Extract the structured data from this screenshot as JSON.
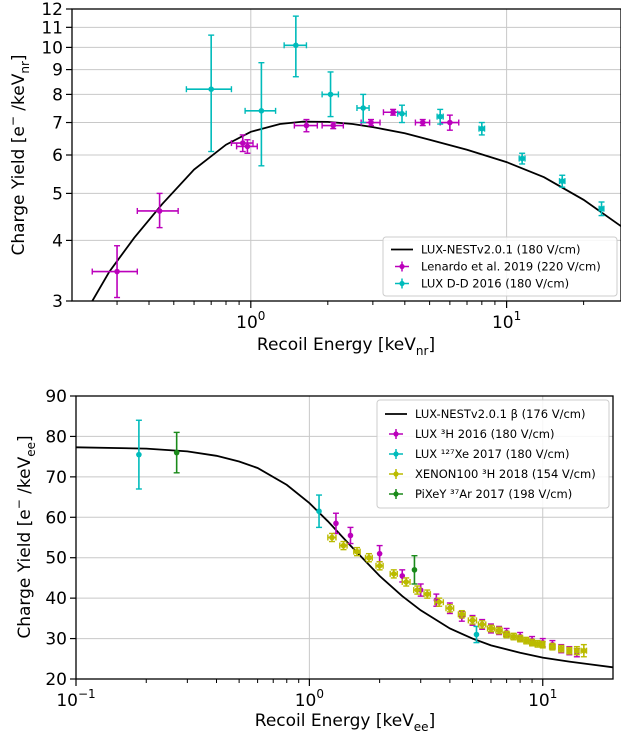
{
  "chart_data": [
    {
      "type": "scatter",
      "xscale": "log",
      "yscale": "log",
      "xlim": [
        0.2,
        28
      ],
      "ylim": [
        3,
        12
      ],
      "xlabel": "Recoil Energy [keV",
      "xlabel_sub": "nr",
      "xlabel_end": "]",
      "ylabel": "Charge Yield [e",
      "ylabel_sup": "−",
      "ylabel_mid": " /keV",
      "ylabel_sub": "nr",
      "ylabel_end": "]",
      "xticks": [
        {
          "v": 1,
          "base": "10",
          "exp": "0"
        },
        {
          "v": 10,
          "base": "10",
          "exp": "1"
        }
      ],
      "yticks": [
        3,
        4,
        5,
        6,
        7,
        8,
        9,
        10,
        11,
        12
      ],
      "grid": true,
      "legend_position": "lower-right",
      "series": [
        {
          "name": "LUX-NESTv2.0.1 (180 V/cm)",
          "kind": "line",
          "color": "#000000",
          "x": [
            0.24,
            0.28,
            0.35,
            0.45,
            0.6,
            0.8,
            1.0,
            1.3,
            1.6,
            2.0,
            2.5,
            3.0,
            4.0,
            5.0,
            7.0,
            10.0,
            14.0,
            20.0,
            28.0
          ],
          "y": [
            3.0,
            3.45,
            4.05,
            4.75,
            5.6,
            6.3,
            6.7,
            6.95,
            7.03,
            7.02,
            6.95,
            6.85,
            6.65,
            6.45,
            6.15,
            5.8,
            5.4,
            4.85,
            4.28
          ]
        },
        {
          "name": "Lenardo et al. 2019 (220 V/cm)",
          "kind": "points",
          "color": "#bb00bb",
          "points": [
            {
              "x": 0.3,
              "y": 3.45,
              "xlo": 0.24,
              "xhi": 0.36,
              "ylo": 3.05,
              "yhi": 3.9
            },
            {
              "x": 0.44,
              "y": 4.6,
              "xlo": 0.36,
              "xhi": 0.52,
              "ylo": 4.25,
              "yhi": 5.0
            },
            {
              "x": 0.93,
              "y": 6.35,
              "xlo": 0.84,
              "xhi": 1.02,
              "ylo": 6.1,
              "yhi": 6.6
            },
            {
              "x": 0.97,
              "y": 6.25,
              "xlo": 0.88,
              "xhi": 1.06,
              "ylo": 6.05,
              "yhi": 6.45
            },
            {
              "x": 1.65,
              "y": 6.9,
              "xlo": 1.48,
              "xhi": 1.82,
              "ylo": 6.7,
              "yhi": 7.1
            },
            {
              "x": 2.1,
              "y": 6.9,
              "xlo": 1.9,
              "xhi": 2.3,
              "ylo": 6.8,
              "yhi": 7.0
            },
            {
              "x": 2.95,
              "y": 7.0,
              "xlo": 2.7,
              "xhi": 3.2,
              "ylo": 6.9,
              "yhi": 7.1
            },
            {
              "x": 3.6,
              "y": 7.35,
              "xlo": 3.3,
              "xhi": 3.9,
              "ylo": 7.25,
              "yhi": 7.45
            },
            {
              "x": 4.7,
              "y": 7.0,
              "xlo": 4.4,
              "xhi": 5.0,
              "ylo": 6.9,
              "yhi": 7.1
            },
            {
              "x": 6.0,
              "y": 7.0,
              "xlo": 5.5,
              "xhi": 6.5,
              "ylo": 6.75,
              "yhi": 7.25
            }
          ]
        },
        {
          "name": "LUX D-D 2016 (180 V/cm)",
          "kind": "points",
          "color": "#00bbbb",
          "points": [
            {
              "x": 0.7,
              "y": 8.2,
              "xlo": 0.56,
              "xhi": 0.84,
              "ylo": 6.1,
              "yhi": 10.6
            },
            {
              "x": 1.1,
              "y": 7.4,
              "xlo": 0.95,
              "xhi": 1.25,
              "ylo": 5.7,
              "yhi": 9.3
            },
            {
              "x": 1.5,
              "y": 10.1,
              "xlo": 1.35,
              "xhi": 1.65,
              "ylo": 8.7,
              "yhi": 11.6
            },
            {
              "x": 2.05,
              "y": 8.0,
              "xlo": 1.9,
              "xhi": 2.2,
              "ylo": 7.2,
              "yhi": 8.9
            },
            {
              "x": 2.75,
              "y": 7.5,
              "xlo": 2.6,
              "xhi": 2.9,
              "ylo": 7.0,
              "yhi": 8.0
            },
            {
              "x": 3.9,
              "y": 7.3,
              "xlo": 3.75,
              "xhi": 4.05,
              "ylo": 7.0,
              "yhi": 7.6
            },
            {
              "x": 5.5,
              "y": 7.2,
              "xlo": 5.35,
              "xhi": 5.65,
              "ylo": 6.95,
              "yhi": 7.45
            },
            {
              "x": 8.0,
              "y": 6.8,
              "xlo": 7.8,
              "xhi": 8.2,
              "ylo": 6.6,
              "yhi": 7.0
            },
            {
              "x": 11.5,
              "y": 5.9,
              "xlo": 11.2,
              "xhi": 11.8,
              "ylo": 5.75,
              "yhi": 6.05
            },
            {
              "x": 16.5,
              "y": 5.3,
              "xlo": 16.1,
              "xhi": 16.9,
              "ylo": 5.15,
              "yhi": 5.45
            },
            {
              "x": 23.5,
              "y": 4.65,
              "xlo": 23.0,
              "xhi": 24.0,
              "ylo": 4.5,
              "yhi": 4.8
            }
          ]
        }
      ]
    },
    {
      "type": "scatter",
      "xscale": "log",
      "yscale": "linear",
      "xlim": [
        0.1,
        20
      ],
      "ylim": [
        20,
        90
      ],
      "xlabel": "Recoil Energy [keV",
      "xlabel_sub": "ee",
      "xlabel_end": "]",
      "ylabel": "Charge Yield [e",
      "ylabel_sup": "−",
      "ylabel_mid": " /keV",
      "ylabel_sub": "ee",
      "ylabel_end": "]",
      "xticks": [
        {
          "v": 0.1,
          "base": "10",
          "exp": "−1"
        },
        {
          "v": 1,
          "base": "10",
          "exp": "0"
        },
        {
          "v": 10,
          "base": "10",
          "exp": "1"
        }
      ],
      "yticks": [
        20,
        30,
        40,
        50,
        60,
        70,
        80,
        90
      ],
      "grid": true,
      "legend_position": "top-right",
      "series": [
        {
          "name": "LUX-NESTv2.0.1 β (176 V/cm)",
          "kind": "line",
          "color": "#000000",
          "x": [
            0.1,
            0.2,
            0.3,
            0.4,
            0.5,
            0.6,
            0.8,
            1.0,
            1.2,
            1.5,
            2.0,
            2.5,
            3.0,
            4.0,
            5.0,
            6.0,
            8.0,
            10.0,
            13.0,
            16.0,
            20.0
          ],
          "y": [
            77.3,
            77.0,
            76.3,
            75.2,
            73.8,
            72.2,
            68.0,
            63.5,
            59.0,
            53.0,
            45.5,
            40.5,
            37.0,
            32.5,
            30.0,
            28.3,
            26.5,
            25.3,
            24.3,
            23.6,
            22.9
          ]
        },
        {
          "name": "LUX ³H 2016 (180 V/cm)",
          "kind": "points",
          "color": "#bb00bb",
          "points": [
            {
              "x": 1.3,
              "y": 58.5,
              "ylo": 56.0,
              "yhi": 61.0
            },
            {
              "x": 1.5,
              "y": 55.5,
              "ylo": 53.5,
              "yhi": 57.5
            },
            {
              "x": 2.0,
              "y": 51.0,
              "ylo": 49.0,
              "yhi": 53.0
            },
            {
              "x": 2.5,
              "y": 45.5,
              "ylo": 44.0,
              "yhi": 47.0
            },
            {
              "x": 3.0,
              "y": 42.0,
              "ylo": 40.5,
              "yhi": 43.5
            },
            {
              "x": 3.5,
              "y": 39.5,
              "ylo": 38.0,
              "yhi": 41.0
            },
            {
              "x": 4.0,
              "y": 37.5,
              "ylo": 36.2,
              "yhi": 38.8
            },
            {
              "x": 4.5,
              "y": 35.5,
              "ylo": 34.3,
              "yhi": 36.7
            },
            {
              "x": 5.0,
              "y": 34.5,
              "ylo": 33.3,
              "yhi": 35.7
            },
            {
              "x": 5.5,
              "y": 33.5,
              "ylo": 32.3,
              "yhi": 34.7
            },
            {
              "x": 6.0,
              "y": 32.5,
              "ylo": 31.4,
              "yhi": 33.6
            },
            {
              "x": 6.5,
              "y": 32.0,
              "ylo": 31.0,
              "yhi": 33.0
            },
            {
              "x": 7.0,
              "y": 31.5,
              "ylo": 30.5,
              "yhi": 32.5
            },
            {
              "x": 8.0,
              "y": 30.5,
              "ylo": 29.5,
              "yhi": 31.5
            },
            {
              "x": 9.0,
              "y": 29.5,
              "ylo": 28.5,
              "yhi": 30.5
            },
            {
              "x": 10.0,
              "y": 29.0,
              "ylo": 28.0,
              "yhi": 30.0
            },
            {
              "x": 11.0,
              "y": 28.5,
              "ylo": 27.5,
              "yhi": 29.5
            },
            {
              "x": 12.0,
              "y": 27.5,
              "ylo": 26.5,
              "yhi": 28.5
            },
            {
              "x": 13.0,
              "y": 27.0,
              "ylo": 26.0,
              "yhi": 28.0
            },
            {
              "x": 14.0,
              "y": 26.5,
              "ylo": 25.5,
              "yhi": 27.5
            }
          ]
        },
        {
          "name": "LUX ¹²⁷Xe 2017 (180 V/cm)",
          "kind": "points",
          "color": "#00bbbb",
          "points": [
            {
              "x": 0.186,
              "y": 75.5,
              "ylo": 67.0,
              "yhi": 84.0
            },
            {
              "x": 1.1,
              "y": 61.5,
              "ylo": 57.5,
              "yhi": 65.5
            },
            {
              "x": 5.2,
              "y": 31.0,
              "ylo": 29.0,
              "yhi": 33.0
            }
          ]
        },
        {
          "name": "XENON100 ³H 2018 (154 V/cm)",
          "kind": "points",
          "color": "#bbbb00",
          "points": [
            {
              "x": 1.25,
              "y": 55.0,
              "xlo": 1.2,
              "xhi": 1.3,
              "ylo": 54.0,
              "yhi": 56.0
            },
            {
              "x": 1.4,
              "y": 53.0,
              "xlo": 1.35,
              "xhi": 1.45,
              "ylo": 52.0,
              "yhi": 54.0
            },
            {
              "x": 1.6,
              "y": 51.5,
              "xlo": 1.55,
              "xhi": 1.65,
              "ylo": 50.5,
              "yhi": 52.5
            },
            {
              "x": 1.8,
              "y": 50.0,
              "xlo": 1.74,
              "xhi": 1.86,
              "ylo": 49.0,
              "yhi": 51.0
            },
            {
              "x": 2.0,
              "y": 48.0,
              "xlo": 1.93,
              "xhi": 2.07,
              "ylo": 47.0,
              "yhi": 49.0
            },
            {
              "x": 2.3,
              "y": 46.0,
              "xlo": 2.22,
              "xhi": 2.38,
              "ylo": 45.0,
              "yhi": 47.0
            },
            {
              "x": 2.6,
              "y": 44.0,
              "xlo": 2.5,
              "xhi": 2.7,
              "ylo": 43.0,
              "yhi": 45.0
            },
            {
              "x": 2.9,
              "y": 42.0,
              "xlo": 2.8,
              "xhi": 3.0,
              "ylo": 41.0,
              "yhi": 43.0
            },
            {
              "x": 3.2,
              "y": 41.0,
              "xlo": 3.1,
              "xhi": 3.3,
              "ylo": 40.0,
              "yhi": 42.0
            },
            {
              "x": 3.6,
              "y": 39.0,
              "xlo": 3.45,
              "xhi": 3.75,
              "ylo": 38.0,
              "yhi": 40.0
            },
            {
              "x": 4.0,
              "y": 37.5,
              "xlo": 3.85,
              "xhi": 4.15,
              "ylo": 36.6,
              "yhi": 38.4
            },
            {
              "x": 4.5,
              "y": 36.0,
              "xlo": 4.35,
              "xhi": 4.65,
              "ylo": 35.1,
              "yhi": 36.9
            },
            {
              "x": 5.0,
              "y": 34.5,
              "xlo": 4.8,
              "xhi": 5.2,
              "ylo": 33.6,
              "yhi": 35.4
            },
            {
              "x": 5.5,
              "y": 33.5,
              "xlo": 5.3,
              "xhi": 5.7,
              "ylo": 32.6,
              "yhi": 34.4
            },
            {
              "x": 6.0,
              "y": 32.5,
              "xlo": 5.8,
              "xhi": 6.2,
              "ylo": 31.7,
              "yhi": 33.3
            },
            {
              "x": 6.5,
              "y": 32.0,
              "xlo": 6.3,
              "xhi": 6.7,
              "ylo": 31.2,
              "yhi": 32.8
            },
            {
              "x": 7.0,
              "y": 31.0,
              "xlo": 6.8,
              "xhi": 7.2,
              "ylo": 30.2,
              "yhi": 31.8
            },
            {
              "x": 7.5,
              "y": 30.5,
              "xlo": 7.3,
              "xhi": 7.7,
              "ylo": 29.7,
              "yhi": 31.3
            },
            {
              "x": 8.0,
              "y": 30.0,
              "xlo": 7.8,
              "xhi": 8.2,
              "ylo": 29.2,
              "yhi": 30.8
            },
            {
              "x": 8.5,
              "y": 29.5,
              "xlo": 8.3,
              "xhi": 8.7,
              "ylo": 28.7,
              "yhi": 30.3
            },
            {
              "x": 9.0,
              "y": 29.0,
              "xlo": 8.8,
              "xhi": 9.2,
              "ylo": 28.2,
              "yhi": 29.8
            },
            {
              "x": 9.5,
              "y": 28.7,
              "xlo": 9.3,
              "xhi": 9.7,
              "ylo": 27.9,
              "yhi": 29.5
            },
            {
              "x": 10.0,
              "y": 28.5,
              "xlo": 9.8,
              "xhi": 10.2,
              "ylo": 27.7,
              "yhi": 29.3
            },
            {
              "x": 11.0,
              "y": 28.0,
              "xlo": 10.7,
              "xhi": 11.3,
              "ylo": 27.2,
              "yhi": 28.8
            },
            {
              "x": 12.0,
              "y": 27.5,
              "xlo": 11.7,
              "xhi": 12.3,
              "ylo": 26.7,
              "yhi": 28.3
            },
            {
              "x": 13.0,
              "y": 27.0,
              "xlo": 12.7,
              "xhi": 13.3,
              "ylo": 26.2,
              "yhi": 27.8
            },
            {
              "x": 14.0,
              "y": 27.0,
              "xlo": 13.7,
              "xhi": 14.3,
              "ylo": 26.0,
              "yhi": 28.0
            },
            {
              "x": 15.0,
              "y": 27.0,
              "xlo": 14.6,
              "xhi": 15.4,
              "ylo": 25.5,
              "yhi": 28.5
            }
          ]
        },
        {
          "name": "PiXeY ³⁷Ar 2017 (198 V/cm)",
          "kind": "points",
          "color": "#1a8a1a",
          "points": [
            {
              "x": 0.27,
              "y": 76.0,
              "ylo": 71.0,
              "yhi": 81.0
            },
            {
              "x": 2.82,
              "y": 47.0,
              "ylo": 43.5,
              "yhi": 50.5
            }
          ]
        }
      ]
    }
  ]
}
